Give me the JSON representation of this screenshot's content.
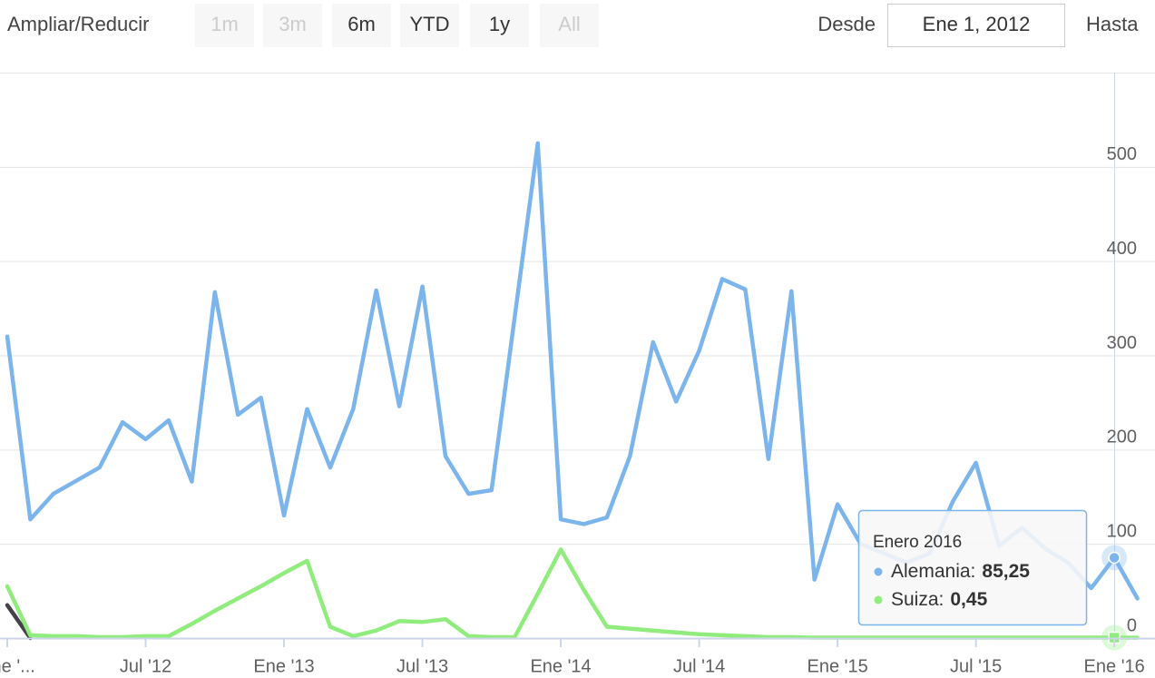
{
  "chart_data": {
    "type": "line",
    "range_selector": {
      "zoom_label": "Ampliar/Reducir",
      "buttons": [
        {
          "text": "1m",
          "enabled": false
        },
        {
          "text": "3m",
          "enabled": false
        },
        {
          "text": "6m",
          "enabled": true
        },
        {
          "text": "YTD",
          "enabled": true
        },
        {
          "text": "1y",
          "enabled": true
        },
        {
          "text": "All",
          "enabled": false
        }
      ],
      "from_label": "Desde",
      "from_value": "Ene 1, 2012",
      "to_label": "Hasta"
    },
    "x": [
      "2012-01",
      "2012-02",
      "2012-03",
      "2012-04",
      "2012-05",
      "2012-06",
      "2012-07",
      "2012-08",
      "2012-09",
      "2012-10",
      "2012-11",
      "2012-12",
      "2013-01",
      "2013-02",
      "2013-03",
      "2013-04",
      "2013-05",
      "2013-06",
      "2013-07",
      "2013-08",
      "2013-09",
      "2013-10",
      "2013-11",
      "2013-12",
      "2014-01",
      "2014-02",
      "2014-03",
      "2014-04",
      "2014-05",
      "2014-06",
      "2014-07",
      "2014-08",
      "2014-09",
      "2014-10",
      "2014-11",
      "2014-12",
      "2015-01",
      "2015-02",
      "2015-03",
      "2015-04",
      "2015-05",
      "2015-06",
      "2015-07",
      "2015-08",
      "2015-09",
      "2015-10",
      "2015-11",
      "2015-12",
      "2016-01",
      "2016-02"
    ],
    "series": [
      {
        "name": "Alemania",
        "color": "#7cb5ec",
        "values": [
          320,
          126,
          153,
          167,
          181,
          229,
          211,
          231,
          166,
          367,
          237,
          255,
          130,
          243,
          181,
          243,
          369,
          246,
          373,
          193,
          153,
          157,
          340,
          525,
          126,
          121,
          128,
          193,
          314,
          251,
          305,
          381,
          370,
          190,
          368,
          62,
          142,
          100,
          90,
          80,
          90,
          145,
          186,
          98,
          117,
          95,
          80,
          53,
          85.25,
          42
        ]
      },
      {
        "name": "Suiza",
        "color": "#90ed7d",
        "values": [
          55,
          3,
          2,
          2,
          1,
          1,
          2,
          2,
          15,
          29,
          42,
          55,
          69,
          82,
          12,
          2,
          8,
          18,
          17,
          20,
          2,
          1,
          1,
          47,
          94,
          51,
          12,
          10,
          8,
          6,
          4,
          3,
          2,
          1,
          1,
          0.5,
          0.5,
          0.5,
          0.5,
          0.5,
          0.5,
          0.5,
          0.5,
          0.5,
          0.5,
          0.5,
          0.5,
          0.5,
          0.45,
          0.4
        ]
      },
      {
        "color": "#434348",
        "values": [
          35,
          0,
          null,
          null,
          null,
          null,
          null,
          null,
          null,
          null,
          null,
          null,
          null,
          null,
          null,
          null,
          null,
          null,
          null,
          null,
          null,
          null,
          null,
          null,
          null,
          null,
          null,
          null,
          null,
          null,
          null,
          null,
          null,
          null,
          null,
          null,
          null,
          null,
          null,
          null,
          null,
          null,
          null,
          null,
          null,
          null,
          null,
          null,
          null,
          null
        ]
      }
    ],
    "ylim": [
      0,
      600
    ],
    "yticks": [
      0,
      100,
      200,
      300,
      400,
      500
    ],
    "xticks": [
      {
        "value": "2012-01",
        "label": "Ene '..."
      },
      {
        "value": "2012-07",
        "label": "Jul '12"
      },
      {
        "value": "2013-01",
        "label": "Ene '13"
      },
      {
        "value": "2013-07",
        "label": "Jul '13"
      },
      {
        "value": "2014-01",
        "label": "Ene '14"
      },
      {
        "value": "2014-07",
        "label": "Jul '14"
      },
      {
        "value": "2015-01",
        "label": "Ene '15"
      },
      {
        "value": "2015-07",
        "label": "Jul '15"
      },
      {
        "value": "2016-01",
        "label": "Ene '16"
      }
    ],
    "grid": true,
    "tooltip": {
      "title": "Enero 2016",
      "index": 48,
      "rows": [
        {
          "series": "Alemania:",
          "value_label": "85,25"
        },
        {
          "series": "Suiza:",
          "value_label": "0,45"
        }
      ]
    }
  }
}
